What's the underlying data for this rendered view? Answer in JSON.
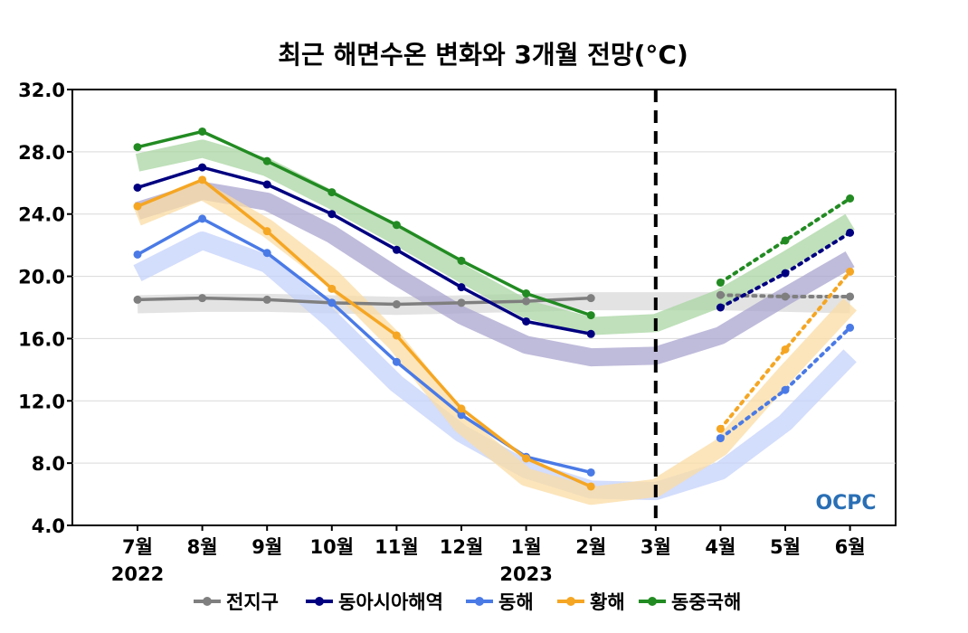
{
  "chart_data": {
    "type": "line",
    "title": "최근 해면수온 변화와 3개월 전망(°C)",
    "categories": [
      "7월",
      "8월",
      "9월",
      "10월",
      "11월",
      "12월",
      "1월",
      "2월",
      "3월",
      "4월",
      "5월",
      "6월"
    ],
    "year_labels": [
      {
        "category_index": 0,
        "text": "2022"
      },
      {
        "category_index": 6,
        "text": "2023"
      }
    ],
    "ylim": [
      4.0,
      32.0
    ],
    "yticks": [
      "4.0",
      "8.0",
      "12.0",
      "16.0",
      "20.0",
      "24.0",
      "28.0",
      "32.0"
    ],
    "ytick_values": [
      4,
      8,
      12,
      16,
      20,
      24,
      28,
      32
    ],
    "grid": "horizontal",
    "divider_category_index": 8,
    "legend_position": "bottom",
    "series": [
      {
        "name": "전지구",
        "color": "#7f7f7f",
        "observed": [
          18.5,
          18.6,
          18.5,
          18.3,
          18.2,
          18.3,
          18.4,
          18.6
        ],
        "forecast": [
          null,
          null,
          null,
          null,
          null,
          null,
          null,
          null,
          null,
          18.8,
          18.7,
          18.7
        ],
        "climatology": [
          18.2,
          18.3,
          18.3,
          18.2,
          18.1,
          18.2,
          18.3,
          18.4,
          18.4,
          18.4,
          18.3,
          18.2
        ]
      },
      {
        "name": "동아시아해역",
        "color": "#000080",
        "observed": [
          25.7,
          27.0,
          25.9,
          24.0,
          21.7,
          19.3,
          17.1,
          16.3
        ],
        "forecast": [
          null,
          null,
          null,
          null,
          null,
          null,
          null,
          null,
          null,
          18.0,
          20.2,
          22.8
        ],
        "climatology": [
          24.2,
          25.5,
          24.8,
          22.7,
          20.0,
          17.5,
          15.6,
          14.8,
          14.9,
          16.2,
          18.7,
          21.1
        ]
      },
      {
        "name": "동해",
        "color": "#4a7ae6",
        "observed": [
          21.4,
          23.7,
          21.5,
          18.3,
          14.5,
          11.1,
          8.4,
          7.4
        ],
        "forecast": [
          null,
          null,
          null,
          null,
          null,
          null,
          null,
          null,
          null,
          9.6,
          12.7,
          16.7
        ],
        "climatology": [
          20.2,
          22.3,
          20.8,
          17.2,
          13.1,
          9.9,
          7.6,
          6.3,
          6.2,
          7.5,
          10.6,
          14.9
        ]
      },
      {
        "name": "황해",
        "color": "#f5a623",
        "observed": [
          24.5,
          26.2,
          22.9,
          19.2,
          16.2,
          11.5,
          8.3,
          6.5
        ],
        "forecast": [
          null,
          null,
          null,
          null,
          null,
          null,
          null,
          null,
          null,
          10.2,
          15.3,
          20.3
        ],
        "climatology": [
          23.8,
          25.5,
          23.1,
          19.9,
          15.7,
          10.5,
          7.1,
          5.9,
          6.4,
          9.0,
          13.7,
          18.2
        ]
      },
      {
        "name": "동중국해",
        "color": "#228b22",
        "observed": [
          28.3,
          29.3,
          27.4,
          25.4,
          23.3,
          21.0,
          18.9,
          17.5
        ],
        "forecast": [
          null,
          null,
          null,
          null,
          null,
          null,
          null,
          null,
          null,
          19.6,
          22.3,
          25.0
        ],
        "climatology": [
          27.3,
          28.2,
          27.0,
          24.9,
          22.6,
          20.2,
          17.9,
          16.8,
          17.0,
          18.6,
          21.0,
          23.5
        ]
      }
    ]
  },
  "logo": {
    "text": "OCPC"
  }
}
